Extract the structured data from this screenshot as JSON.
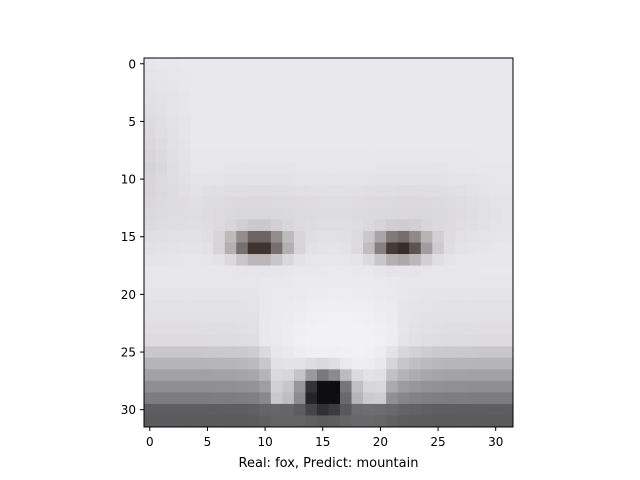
{
  "chart_data": {
    "type": "heatmap",
    "title": "",
    "xlabel": "Real: fox, Predict: mountain",
    "ylabel": "",
    "xlim": [
      -0.5,
      31.5
    ],
    "ylim": [
      31.5,
      -0.5
    ],
    "grid": false,
    "x_ticks": [
      "0",
      "5",
      "10",
      "15",
      "20",
      "25",
      "30"
    ],
    "y_ticks": [
      "0",
      "5",
      "10",
      "15",
      "20",
      "25",
      "30"
    ],
    "image_size": [
      32,
      32
    ],
    "colors": {
      "background": "#ffffff",
      "fur_light": "#e9e8ec",
      "fur_shadow": "#c9c7cc",
      "muzzle": "#f2f2f6",
      "eye": "#3a2e2a",
      "nose": "#0d0d12",
      "chin_dark": "#4a4a4c",
      "axes": "#000000"
    }
  }
}
